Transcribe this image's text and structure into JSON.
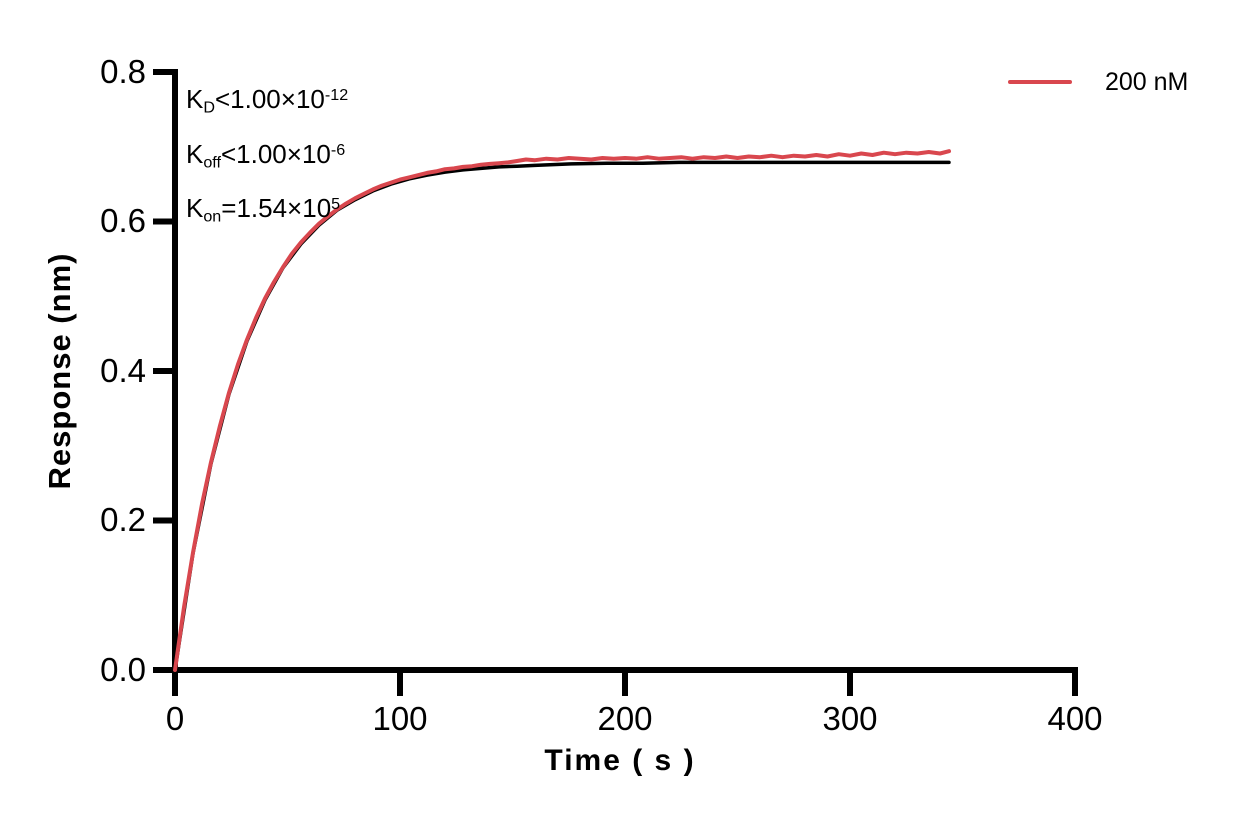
{
  "legend": {
    "label": "200 nM",
    "color": "#D9474E"
  },
  "kinetics": {
    "lines": [
      {
        "base": "K",
        "sub": "D",
        "rest": "<1.00×10",
        "sup": "-12"
      },
      {
        "base": "K",
        "sub": "off",
        "rest": "<1.00×10",
        "sup": "-6"
      },
      {
        "base": "K",
        "sub": "on",
        "rest": "=1.54×10",
        "sup": "5"
      }
    ]
  },
  "axes": {
    "x_title": "Time ( s )",
    "y_title": "Response (nm)",
    "xtick_labels": [
      "0",
      "100",
      "200",
      "300",
      "400"
    ],
    "ytick_labels": [
      "0.0",
      "0.2",
      "0.4",
      "0.6",
      "0.8"
    ]
  },
  "chart_data": {
    "type": "line",
    "title": "",
    "xlabel": "Time ( s )",
    "ylabel": "Response (nm)",
    "xlim": [
      0,
      400
    ],
    "ylim": [
      0,
      0.8
    ],
    "xticks": [
      0,
      100,
      200,
      300,
      400
    ],
    "yticks": [
      0,
      0.2,
      0.4,
      0.6,
      0.8
    ],
    "grid": false,
    "legend_position": "top-right",
    "annotations": [
      "KD<1.00×10^-12",
      "Koff<1.00×10^-6",
      "Kon=1.54×10^5"
    ],
    "series": [
      {
        "name": "200 nM",
        "role": "measured",
        "color": "#D9474E",
        "x": [
          0,
          4,
          8,
          12,
          16,
          20,
          24,
          28,
          32,
          36,
          40,
          44,
          48,
          52,
          56,
          60,
          64,
          68,
          72,
          76,
          80,
          84,
          88,
          92,
          96,
          100,
          104,
          108,
          112,
          116,
          120,
          124,
          128,
          132,
          136,
          140,
          144,
          148,
          152,
          156,
          160,
          165,
          170,
          175,
          180,
          185,
          190,
          195,
          200,
          205,
          210,
          215,
          220,
          225,
          230,
          235,
          240,
          245,
          250,
          255,
          260,
          265,
          270,
          275,
          280,
          285,
          290,
          295,
          300,
          305,
          310,
          315,
          320,
          325,
          330,
          335,
          340,
          344
        ],
        "y": [
          0,
          0.084,
          0.157,
          0.222,
          0.278,
          0.327,
          0.371,
          0.409,
          0.442,
          0.471,
          0.497,
          0.519,
          0.539,
          0.557,
          0.572,
          0.585,
          0.597,
          0.607,
          0.616,
          0.624,
          0.631,
          0.637,
          0.643,
          0.648,
          0.652,
          0.656,
          0.659,
          0.662,
          0.665,
          0.667,
          0.67,
          0.671,
          0.673,
          0.674,
          0.676,
          0.677,
          0.678,
          0.679,
          0.681,
          0.683,
          0.682,
          0.684,
          0.683,
          0.685,
          0.684,
          0.683,
          0.685,
          0.684,
          0.685,
          0.684,
          0.686,
          0.684,
          0.685,
          0.686,
          0.684,
          0.686,
          0.685,
          0.687,
          0.685,
          0.687,
          0.686,
          0.688,
          0.686,
          0.688,
          0.687,
          0.689,
          0.687,
          0.69,
          0.688,
          0.691,
          0.689,
          0.692,
          0.69,
          0.692,
          0.691,
          0.693,
          0.691,
          0.694
        ]
      },
      {
        "name": "kinetic fit",
        "role": "fit",
        "color": "#000000",
        "x": [
          0,
          8,
          16,
          24,
          32,
          40,
          48,
          56,
          64,
          72,
          80,
          88,
          96,
          104,
          112,
          120,
          128,
          136,
          144,
          152,
          160,
          176,
          192,
          208,
          224,
          240,
          256,
          272,
          288,
          304,
          320,
          336,
          344
        ],
        "y": [
          0,
          0.156,
          0.276,
          0.369,
          0.44,
          0.495,
          0.538,
          0.57,
          0.595,
          0.615,
          0.629,
          0.641,
          0.65,
          0.657,
          0.662,
          0.666,
          0.669,
          0.671,
          0.673,
          0.674,
          0.675,
          0.677,
          0.678,
          0.678,
          0.679,
          0.679,
          0.679,
          0.679,
          0.679,
          0.679,
          0.679,
          0.679,
          0.679
        ]
      }
    ]
  }
}
